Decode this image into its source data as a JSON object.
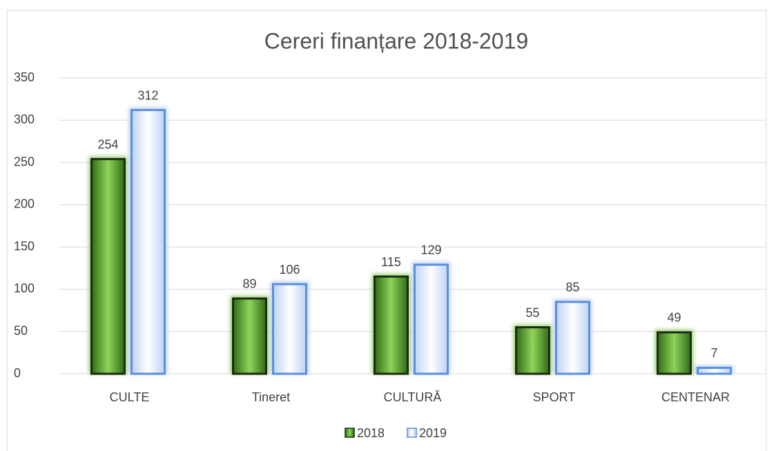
{
  "chart_data": {
    "type": "bar",
    "title": "Cereri finanțare 2018-2019",
    "categories": [
      "CULTE",
      "Tineret",
      "CULTURĂ",
      "SPORT",
      "CENTENAR"
    ],
    "series": [
      {
        "name": "2018",
        "color": "#6fbf3a",
        "values": [
          254,
          89,
          115,
          55,
          49
        ]
      },
      {
        "name": "2019",
        "color": "#a9c4ee",
        "values": [
          312,
          106,
          129,
          85,
          7
        ]
      }
    ],
    "ylim": [
      0,
      350
    ],
    "yticks": [
      0,
      50,
      100,
      150,
      200,
      250,
      300,
      350
    ],
    "grid": true,
    "legend": "bottom"
  }
}
